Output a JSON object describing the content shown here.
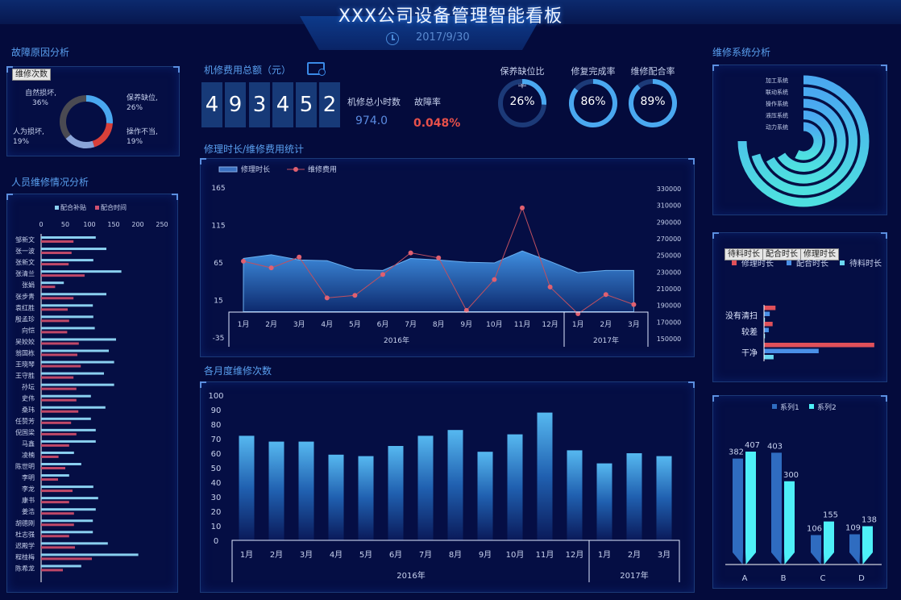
{
  "header": {
    "title": "XXX公司设备管理智能看板",
    "date": "2017/9/30",
    "clock_icon": "clock-icon"
  },
  "colors": {
    "background": "#040b3c",
    "accent": "#4aa8f0",
    "red": "#e0505a",
    "cyan": "#4ef0f8"
  },
  "fault": {
    "title": "故障原因分析",
    "button": "维修次数",
    "type": "pie",
    "slices": [
      {
        "name": "保养缺位",
        "value": 26,
        "label": "保养缺位, 26%",
        "color": "#4aa8f0"
      },
      {
        "name": "操作不当",
        "value": 19,
        "label": "操作不当, 19%",
        "color": "#d8403a"
      },
      {
        "name": "人为损坏",
        "value": 19,
        "label": "人为损坏, 19%",
        "color": "#8aa4d8"
      },
      {
        "name": "自然损坏",
        "value": 36,
        "label": "自然损坏, 36%",
        "color": "#4a4a52"
      }
    ]
  },
  "personnel": {
    "title": "人员维修情况分析",
    "legend": [
      "配合补贴",
      "配合时间"
    ],
    "ticks": [
      "0",
      "50",
      "100",
      "150",
      "200",
      "250"
    ],
    "rows": [
      [
        "邹新文",
        113,
        67
      ],
      [
        "张一波",
        135,
        63
      ],
      [
        "张新文",
        108,
        57
      ],
      [
        "张清兰",
        166,
        90
      ],
      [
        "张娟",
        47,
        29
      ],
      [
        "张步青",
        135,
        67
      ],
      [
        "袁红胜",
        107,
        55
      ],
      [
        "殷孟珍",
        108,
        58
      ],
      [
        "向恺",
        111,
        54
      ],
      [
        "吴姣姣",
        155,
        78
      ],
      [
        "翁国栋",
        140,
        75
      ],
      [
        "王晓琴",
        151,
        82
      ],
      [
        "王守胜",
        130,
        67
      ],
      [
        "孙坛",
        151,
        73
      ],
      [
        "史伟",
        103,
        73
      ],
      [
        "桑玮",
        133,
        77
      ],
      [
        "任赞芳",
        103,
        62
      ],
      [
        "倪国梁",
        113,
        73
      ],
      [
        "马鑫",
        113,
        58
      ],
      [
        "凌楠",
        68,
        36
      ],
      [
        "陈世明",
        83,
        50
      ],
      [
        "李明",
        58,
        35
      ],
      [
        "李龙",
        108,
        65
      ],
      [
        "康书",
        118,
        58
      ],
      [
        "姜浩",
        113,
        68
      ],
      [
        "胡德刚",
        107,
        68
      ],
      [
        "杜志强",
        107,
        58
      ],
      [
        "迟殿学",
        138,
        70
      ],
      [
        "程桂梅",
        201,
        105
      ],
      [
        "陈希龙",
        83,
        45
      ]
    ]
  },
  "cost": {
    "title": "机修费用总额（元）",
    "monitor_icon": "monitor-gear-icon",
    "digits": [
      "4",
      "9",
      "3",
      "4",
      "5",
      "2"
    ],
    "hours_label": "机修总小时数",
    "hours_value": "974.0",
    "rate_label": "故障率",
    "rate_value": "0.048%"
  },
  "gauges": [
    {
      "label": "保养缺位比率",
      "value": 26,
      "text": "26%"
    },
    {
      "label": "修复完成率",
      "value": 86,
      "text": "86%"
    },
    {
      "label": "维修配合率",
      "value": 89,
      "text": "89%"
    }
  ],
  "chart_data": [
    {
      "type": "line",
      "title": "修理时长/维修费用统计",
      "categories": [
        "1月",
        "2月",
        "3月",
        "4月",
        "5月",
        "6月",
        "7月",
        "8月",
        "9月",
        "10月",
        "11月",
        "12月",
        "1月",
        "2月",
        "3月"
      ],
      "groups": [
        {
          "label": "2016年",
          "count": 12
        },
        {
          "label": "2017年",
          "count": 3
        }
      ],
      "y_ticks": [
        "165",
        "115",
        "65",
        "15",
        "-35"
      ],
      "ylim": [
        -35,
        165
      ],
      "y2_ticks": [
        "330000",
        "310000",
        "290000",
        "270000",
        "250000",
        "230000",
        "210000",
        "190000",
        "170000",
        "150000"
      ],
      "y2lim": [
        150000,
        330000
      ],
      "series": [
        {
          "name": "修理时长",
          "kind": "area",
          "axis": "left",
          "values": [
            71,
            76,
            69,
            68,
            56,
            55,
            71,
            69,
            66,
            65,
            81,
            67,
            52,
            55,
            55
          ]
        },
        {
          "name": "维修费用",
          "kind": "line",
          "axis": "right",
          "values": [
            243000,
            235000,
            248000,
            199000,
            202000,
            227000,
            253000,
            247000,
            184000,
            221000,
            307000,
            212000,
            180000,
            203000,
            191000
          ]
        }
      ]
    },
    {
      "type": "bar",
      "title": "各月度维修次数",
      "categories": [
        "1月",
        "2月",
        "3月",
        "4月",
        "5月",
        "6月",
        "7月",
        "8月",
        "9月",
        "10月",
        "11月",
        "12月",
        "1月",
        "2月",
        "3月"
      ],
      "groups": [
        {
          "label": "2016年",
          "count": 12
        },
        {
          "label": "2017年",
          "count": 3
        }
      ],
      "y_ticks": [
        "100",
        "90",
        "80",
        "70",
        "60",
        "50",
        "40",
        "30",
        "20",
        "10",
        "0"
      ],
      "ylim": [
        0,
        100
      ],
      "values": [
        72,
        68,
        68,
        59,
        58,
        65,
        72,
        76,
        61,
        73,
        88,
        62,
        53,
        60,
        58
      ]
    },
    {
      "type": "radial-bar",
      "title": "维修系统分析",
      "categories": [
        "加工系统",
        "联动系统",
        "操作系统",
        "液压系统",
        "动力系统"
      ],
      "values": [
        0.75,
        0.705,
        0.67,
        0.66,
        0.575
      ]
    },
    {
      "type": "bar",
      "orientation": "horizontal",
      "buttons": [
        "待料时长",
        "配合时长",
        "修理时长"
      ],
      "categories": [
        "没有清扫",
        "较差",
        "干净"
      ],
      "series": [
        {
          "name": "修理时长",
          "color": "#e0505a",
          "values": [
            12,
            9,
            115
          ]
        },
        {
          "name": "配合时长",
          "color": "#4a90e8",
          "values": [
            6,
            5,
            57
          ]
        },
        {
          "name": "待料时长",
          "color": "#6ad8f0",
          "values": [
            1,
            1,
            10
          ]
        }
      ]
    },
    {
      "type": "bar",
      "categories": [
        "A",
        "B",
        "C",
        "D"
      ],
      "series": [
        {
          "name": "系列1",
          "color": "#2f6cc0",
          "values": [
            382,
            403,
            106,
            109
          ]
        },
        {
          "name": "系列2",
          "color": "#4ef0f8",
          "values": [
            407,
            300,
            155,
            138
          ]
        }
      ]
    }
  ]
}
